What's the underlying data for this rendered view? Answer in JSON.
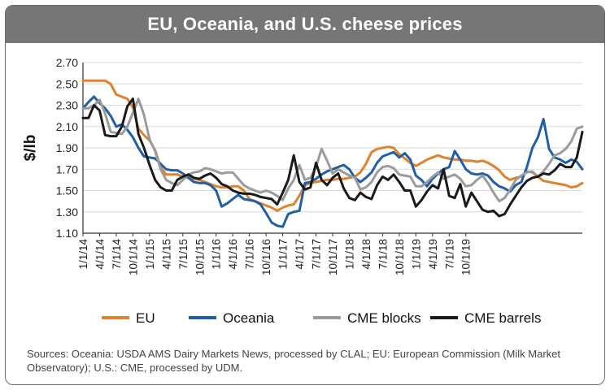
{
  "chart_data": {
    "type": "line",
    "title": "EU, Oceania, and U.S. cheese prices",
    "ylabel": "$/lb",
    "xlabel": "",
    "ylim": [
      1.1,
      2.7
    ],
    "yticks": [
      "1.10",
      "1.30",
      "1.50",
      "1.70",
      "1.90",
      "2.10",
      "2.30",
      "2.50",
      "2.70"
    ],
    "xticks": [
      "1/1/14",
      "4/1/14",
      "7/1/14",
      "10/1/14",
      "1/1/15",
      "4/1/15",
      "7/1/15",
      "10/1/15",
      "1/1/16",
      "4/1/16",
      "7/1/16",
      "10/1/16",
      "1/1/17",
      "4/1/17",
      "7/1/17",
      "10/1/17",
      "1/1/18",
      "4/1/18",
      "7/1/18",
      "10/1/18",
      "1/1/19",
      "4/1/19",
      "7/1/19",
      "10/1/19"
    ],
    "grid": true,
    "legend_position": "bottom",
    "series": [
      {
        "name": "EU",
        "color": "#e0822b",
        "values": [
          2.53,
          2.53,
          2.53,
          2.53,
          2.53,
          2.5,
          2.4,
          2.38,
          2.36,
          2.28,
          2.08,
          2.02,
          1.97,
          1.88,
          1.72,
          1.65,
          1.65,
          1.65,
          1.63,
          1.62,
          1.61,
          1.6,
          1.58,
          1.56,
          1.54,
          1.53,
          1.53,
          1.54,
          1.54,
          1.5,
          1.42,
          1.4,
          1.38,
          1.36,
          1.34,
          1.31,
          1.34,
          1.36,
          1.37,
          1.45,
          1.55,
          1.57,
          1.58,
          1.59,
          1.6,
          1.6,
          1.61,
          1.61,
          1.62,
          1.63,
          1.67,
          1.75,
          1.86,
          1.89,
          1.9,
          1.91,
          1.9,
          1.84,
          1.8,
          1.76,
          1.73,
          1.76,
          1.79,
          1.81,
          1.83,
          1.81,
          1.8,
          1.79,
          1.79,
          1.78,
          1.78,
          1.77,
          1.78,
          1.76,
          1.73,
          1.69,
          1.63,
          1.6,
          1.62,
          1.63,
          1.68,
          1.67,
          1.63,
          1.59,
          1.58,
          1.57,
          1.56,
          1.55,
          1.53,
          1.54,
          1.57
        ]
      },
      {
        "name": "Oceania",
        "color": "#1f5fa8",
        "values": [
          2.27,
          2.33,
          2.38,
          2.32,
          2.27,
          2.2,
          2.1,
          2.12,
          2.07,
          2.0,
          1.9,
          1.82,
          1.81,
          1.8,
          1.75,
          1.7,
          1.69,
          1.69,
          1.66,
          1.62,
          1.58,
          1.57,
          1.57,
          1.55,
          1.5,
          1.35,
          1.38,
          1.42,
          1.46,
          1.42,
          1.41,
          1.4,
          1.37,
          1.29,
          1.2,
          1.17,
          1.16,
          1.28,
          1.3,
          1.31,
          1.57,
          1.58,
          1.61,
          1.65,
          1.68,
          1.7,
          1.72,
          1.74,
          1.7,
          1.62,
          1.58,
          1.62,
          1.67,
          1.76,
          1.82,
          1.84,
          1.86,
          1.81,
          1.85,
          1.79,
          1.64,
          1.6,
          1.54,
          1.61,
          1.66,
          1.7,
          1.72,
          1.87,
          1.79,
          1.7,
          1.66,
          1.65,
          1.66,
          1.64,
          1.58,
          1.54,
          1.52,
          1.49,
          1.55,
          1.58,
          1.72,
          1.9,
          2.0,
          2.17,
          1.89,
          1.81,
          1.79,
          1.76,
          1.79,
          1.77,
          1.7
        ]
      },
      {
        "name": "CME blocks",
        "color": "#9b9b9b",
        "values": [
          2.27,
          2.27,
          2.3,
          2.35,
          2.22,
          2.05,
          2.04,
          2.03,
          2.1,
          2.23,
          2.36,
          2.21,
          1.98,
          1.87,
          1.7,
          1.6,
          1.57,
          1.55,
          1.6,
          1.65,
          1.67,
          1.68,
          1.71,
          1.7,
          1.68,
          1.66,
          1.67,
          1.67,
          1.61,
          1.55,
          1.52,
          1.5,
          1.48,
          1.5,
          1.48,
          1.45,
          1.41,
          1.52,
          1.6,
          1.74,
          1.6,
          1.62,
          1.72,
          1.89,
          1.78,
          1.66,
          1.7,
          1.67,
          1.64,
          1.62,
          1.51,
          1.53,
          1.58,
          1.67,
          1.72,
          1.73,
          1.71,
          1.65,
          1.64,
          1.63,
          1.54,
          1.54,
          1.58,
          1.63,
          1.67,
          1.61,
          1.63,
          1.65,
          1.61,
          1.54,
          1.55,
          1.6,
          1.64,
          1.57,
          1.48,
          1.4,
          1.43,
          1.51,
          1.6,
          1.64,
          1.67,
          1.68,
          1.63,
          1.68,
          1.75,
          1.83,
          1.85,
          1.89,
          1.96,
          2.08,
          2.1
        ]
      },
      {
        "name": "CME barrels",
        "color": "#1a1a1a",
        "values": [
          2.18,
          2.18,
          2.3,
          2.25,
          2.02,
          2.01,
          2.01,
          2.1,
          2.29,
          2.36,
          2.03,
          1.9,
          1.74,
          1.6,
          1.53,
          1.5,
          1.5,
          1.6,
          1.63,
          1.65,
          1.62,
          1.61,
          1.64,
          1.66,
          1.62,
          1.56,
          1.54,
          1.5,
          1.48,
          1.47,
          1.47,
          1.46,
          1.44,
          1.43,
          1.42,
          1.37,
          1.48,
          1.6,
          1.83,
          1.58,
          1.51,
          1.53,
          1.76,
          1.6,
          1.55,
          1.62,
          1.66,
          1.52,
          1.43,
          1.41,
          1.48,
          1.44,
          1.42,
          1.55,
          1.63,
          1.6,
          1.65,
          1.58,
          1.5,
          1.5,
          1.35,
          1.41,
          1.49,
          1.55,
          1.52,
          1.7,
          1.45,
          1.43,
          1.56,
          1.35,
          1.48,
          1.4,
          1.32,
          1.3,
          1.31,
          1.26,
          1.28,
          1.37,
          1.45,
          1.53,
          1.59,
          1.62,
          1.63,
          1.66,
          1.65,
          1.69,
          1.75,
          1.72,
          1.72,
          1.81,
          2.05
        ]
      }
    ]
  },
  "source_text": "Sources: Oceania: USDA AMS Dairy Markets News, processed by CLAL; EU: European Commission (Milk Market Observatory); U.S.: CME, processed by UDM."
}
